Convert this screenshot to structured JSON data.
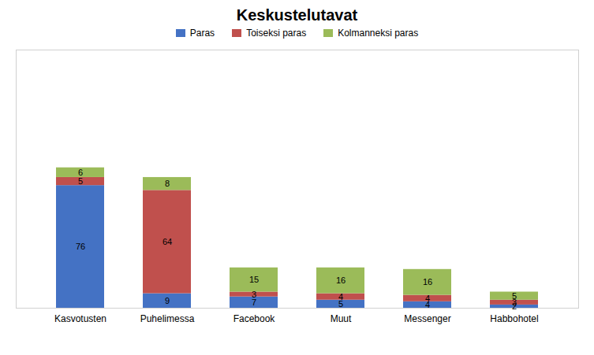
{
  "chart_data": {
    "type": "bar",
    "stacked": true,
    "title": "Keskustelutavat",
    "categories": [
      "Kasvotusten",
      "Puhelimessa",
      "Facebook",
      "Muut",
      "Messenger",
      "Habbohotel"
    ],
    "series": [
      {
        "name": "Paras",
        "color": "#4472C4",
        "values": [
          76,
          9,
          7,
          5,
          4,
          2
        ]
      },
      {
        "name": "Toiseksi paras",
        "color": "#C0504D",
        "values": [
          5,
          64,
          3,
          4,
          4,
          3
        ]
      },
      {
        "name": "Kolmanneksi paras",
        "color": "#9BBB59",
        "values": [
          6,
          8,
          15,
          16,
          16,
          5
        ]
      }
    ],
    "ylim": [
      0,
      160
    ],
    "data_labels": true,
    "tick_labels": "x",
    "legend": "top",
    "grid": false
  }
}
